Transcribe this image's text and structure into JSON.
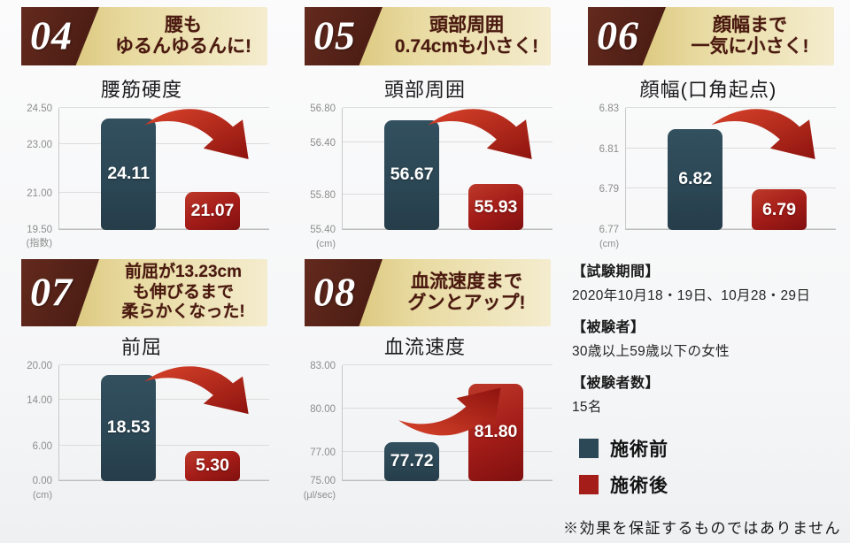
{
  "colors": {
    "before_bar": "#2c4755",
    "after_bar": "#a51d19",
    "arrow_red": "#c0321f",
    "banner_gold": "#e8daa0",
    "banner_maroon": "#4c1d14",
    "headline_text": "#4a190f"
  },
  "chart_data": [
    {
      "type": "bar",
      "panel_number": "04",
      "headline_lines": [
        "腰も",
        "ゆるんゆるんに!"
      ],
      "title": "腰筋硬度",
      "unit_label": "(指数)",
      "categories": [
        "施術前",
        "施術後"
      ],
      "values": [
        24.11,
        21.07
      ],
      "value_labels": [
        "24.11",
        "21.07"
      ],
      "yticks": [
        24.5,
        23.0,
        21.0,
        19.5
      ],
      "ytick_labels": [
        "24.50",
        "23.00",
        "21.00",
        "19.50"
      ],
      "ylim": [
        19.5,
        24.5
      ],
      "trend": "down",
      "grid": true,
      "legend_position": "none"
    },
    {
      "type": "bar",
      "panel_number": "05",
      "headline_lines": [
        "頭部周囲",
        "0.74cmも小さく!"
      ],
      "title": "頭部周囲",
      "unit_label": "(cm)",
      "categories": [
        "施術前",
        "施術後"
      ],
      "values": [
        56.67,
        55.93
      ],
      "value_labels": [
        "56.67",
        "55.93"
      ],
      "yticks": [
        56.8,
        56.4,
        55.8,
        55.4
      ],
      "ytick_labels": [
        "56.80",
        "56.40",
        "55.80",
        "55.40"
      ],
      "ylim": [
        55.4,
        56.8
      ],
      "trend": "down",
      "grid": true,
      "legend_position": "none"
    },
    {
      "type": "bar",
      "panel_number": "06",
      "headline_lines": [
        "顔幅まで",
        "一気に小さく!"
      ],
      "title": "顔幅(口角起点)",
      "unit_label": "(cm)",
      "categories": [
        "施術前",
        "施術後"
      ],
      "values": [
        6.82,
        6.79
      ],
      "value_labels": [
        "6.82",
        "6.79"
      ],
      "yticks": [
        6.83,
        6.81,
        6.79,
        6.77
      ],
      "ytick_labels": [
        "6.83",
        "6.81",
        "6.79",
        "6.77"
      ],
      "ylim": [
        6.77,
        6.83
      ],
      "trend": "down",
      "grid": true,
      "legend_position": "none"
    },
    {
      "type": "bar",
      "panel_number": "07",
      "headline_lines": [
        "前屈が13.23cm",
        "も伸びるまで",
        "柔らかくなった!"
      ],
      "title": "前屈",
      "unit_label": "(cm)",
      "categories": [
        "施術前",
        "施術後"
      ],
      "values": [
        18.53,
        5.3
      ],
      "value_labels": [
        "18.53",
        "5.30"
      ],
      "yticks": [
        20.0,
        14.0,
        6.0,
        0.0
      ],
      "ytick_labels": [
        "20.00",
        "14.00",
        "6.00",
        "0.00"
      ],
      "ylim": [
        0.0,
        20.0
      ],
      "trend": "down",
      "grid": true,
      "legend_position": "none"
    },
    {
      "type": "bar",
      "panel_number": "08",
      "headline_lines": [
        "血流速度まで",
        "グンとアップ!"
      ],
      "title": "血流速度",
      "unit_label": "(μl/sec)",
      "categories": [
        "施術前",
        "施術後"
      ],
      "values": [
        77.72,
        81.8
      ],
      "value_labels": [
        "77.72",
        "81.80"
      ],
      "yticks": [
        83.0,
        80.0,
        77.0,
        75.0
      ],
      "ytick_labels": [
        "83.00",
        "80.00",
        "77.00",
        "75.00"
      ],
      "ylim": [
        75.0,
        83.0
      ],
      "trend": "up",
      "grid": true,
      "legend_position": "none"
    }
  ],
  "study_info": {
    "items": [
      {
        "label": "【試験期間】",
        "value": "2020年10月18・19日、10月28・29日"
      },
      {
        "label": "【被験者】",
        "value": "30歳以上59歳以下の女性"
      },
      {
        "label": "【被験者数】",
        "value": "15名"
      }
    ]
  },
  "legend": {
    "items": [
      {
        "label": "施術前",
        "color": "#2c4755"
      },
      {
        "label": "施術後",
        "color": "#a51d19"
      }
    ]
  },
  "disclaimer": "※効果を保証するものではありません"
}
